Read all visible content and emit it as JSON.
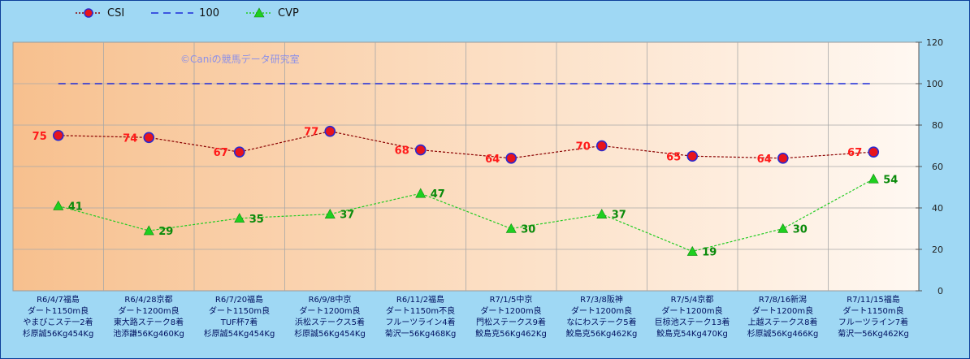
{
  "watermark": "©Caniの競馬データ研究室",
  "legend": [
    {
      "name": "CSI",
      "color": "#8b0000",
      "style": "dotted",
      "marker": "circle"
    },
    {
      "name": "100",
      "color": "#1c2ad8",
      "style": "dashed",
      "marker": "none"
    },
    {
      "name": "CVP",
      "color": "#22cc22",
      "style": "dotted",
      "marker": "triangle"
    }
  ],
  "chart_data": {
    "type": "line",
    "categories": [
      [
        "R6/4/7福島",
        "ダート1150m良",
        "やまびこステ一2着",
        "杉原誠56Kg454Kg"
      ],
      [
        "R6/4/28京都",
        "ダート1200m良",
        "東大路ステーク8着",
        "池添謙56Kg460Kg"
      ],
      [
        "R6/7/20福島",
        "ダート1150m良",
        "TUF杯7着",
        "杉原誠54Kg454Kg"
      ],
      [
        "R6/9/8中京",
        "ダート1200m良",
        "浜松ステークス5着",
        "杉原誠56Kg454Kg"
      ],
      [
        "R6/11/2福島",
        "ダート1150m不良",
        "フルーツライン4着",
        "菊沢一56Kg468Kg"
      ],
      [
        "R7/1/5中京",
        "ダート1200m良",
        "門松ステークス9着",
        "鮫島克56Kg462Kg"
      ],
      [
        "R7/3/8阪神",
        "ダート1200m良",
        "なにわステーク5着",
        "鮫島克56Kg462Kg"
      ],
      [
        "R7/5/4京都",
        "ダート1200m良",
        "巨椋池ステーク13着",
        "鮫島克54Kg470Kg"
      ],
      [
        "R7/8/16新潟",
        "ダート1200m良",
        "上越ステークス8着",
        "杉原誠56Kg466Kg"
      ],
      [
        "R7/11/15福島",
        "ダート1150m良",
        "フルーツライン7着",
        "菊沢一56Kg462Kg"
      ]
    ],
    "series": [
      {
        "name": "CSI",
        "values": [
          75,
          74,
          67,
          77,
          68,
          64,
          70,
          65,
          64,
          67
        ],
        "color": "#8b0000",
        "label_color": "#ff1a1a",
        "marker": "circle"
      },
      {
        "name": "100",
        "values": [
          100,
          100,
          100,
          100,
          100,
          100,
          100,
          100,
          100,
          100
        ],
        "color": "#1c2ad8",
        "marker": "none"
      },
      {
        "name": "CVP",
        "values": [
          41,
          29,
          35,
          37,
          47,
          30,
          37,
          19,
          30,
          54
        ],
        "color": "#22cc22",
        "label_color": "#0a8a0a",
        "marker": "triangle"
      }
    ],
    "y_axis": {
      "position": "right",
      "ylim": [
        0,
        120
      ],
      "ticks": [
        0,
        20,
        40,
        60,
        80,
        100,
        120
      ]
    },
    "grid": true,
    "legend_position": "top-left"
  }
}
